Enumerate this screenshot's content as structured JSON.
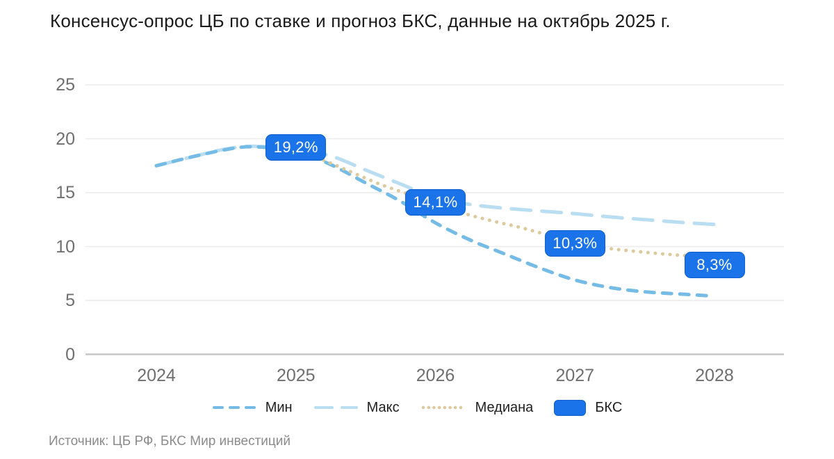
{
  "title": "Консенсус-опрос ЦБ по ставке и прогноз БКС, данные на октябрь 2025 г.",
  "source": "Источник: ЦБ РФ, БКС Мир инвестиций",
  "chart_data": {
    "type": "line",
    "title": "Консенсус-опрос ЦБ по ставке и прогноз БКС, данные на октябрь 2025 г.",
    "x_ticks": [
      "2024",
      "2025",
      "2026",
      "2027",
      "2028"
    ],
    "y_ticks": [
      0,
      5,
      10,
      15,
      20,
      25
    ],
    "xlim": [
      2024,
      2028
    ],
    "ylim": [
      0,
      25
    ],
    "grid": true,
    "legend_position": "bottom",
    "colors": {
      "grid": "#ececec",
      "zero_axis": "#c7c7c7",
      "tick_text": "#6f6f6f",
      "title_text": "#1b1b1b",
      "source_text": "#8b8b8b"
    },
    "series": [
      {
        "id": "max",
        "name": "Макс",
        "color": "#b9ddf1",
        "style": "dash-long",
        "points": [
          [
            2024,
            17.5
          ],
          [
            2024.25,
            18.3
          ],
          [
            2024.5,
            19.05
          ],
          [
            2024.7,
            19.3
          ],
          [
            2025,
            19.0
          ],
          [
            2025.25,
            18.4
          ],
          [
            2025.5,
            17.1
          ],
          [
            2025.75,
            15.8
          ],
          [
            2026,
            14.5
          ],
          [
            2026.25,
            13.9
          ],
          [
            2026.5,
            13.55
          ],
          [
            2026.75,
            13.3
          ],
          [
            2027,
            13.05
          ],
          [
            2027.25,
            12.75
          ],
          [
            2027.5,
            12.5
          ],
          [
            2027.75,
            12.25
          ],
          [
            2028,
            12.05
          ]
        ]
      },
      {
        "id": "min",
        "name": "Мин",
        "color": "#74bce6",
        "style": "dash-short",
        "points": [
          [
            2024,
            17.5
          ],
          [
            2024.25,
            18.3
          ],
          [
            2024.5,
            19.0
          ],
          [
            2024.7,
            19.25
          ],
          [
            2025,
            18.8
          ],
          [
            2025.25,
            17.6
          ],
          [
            2025.5,
            15.9
          ],
          [
            2025.75,
            14.2
          ],
          [
            2026,
            12.2
          ],
          [
            2026.25,
            10.6
          ],
          [
            2026.5,
            9.3
          ],
          [
            2026.75,
            8.0
          ],
          [
            2027,
            6.9
          ],
          [
            2027.25,
            6.2
          ],
          [
            2027.5,
            5.8
          ],
          [
            2027.75,
            5.6
          ],
          [
            2028,
            5.4
          ]
        ]
      },
      {
        "id": "median",
        "name": "Медиана",
        "color": "#ddca9c",
        "style": "dotted",
        "points": [
          [
            2025,
            19.0
          ],
          [
            2025.2,
            18.0
          ],
          [
            2025.4,
            16.9
          ],
          [
            2025.6,
            15.8
          ],
          [
            2025.8,
            14.9
          ],
          [
            2026,
            14.1
          ],
          [
            2026.2,
            13.1
          ],
          [
            2026.4,
            12.4
          ],
          [
            2026.6,
            11.8
          ],
          [
            2026.8,
            11.1
          ],
          [
            2027,
            10.4
          ],
          [
            2027.2,
            9.9
          ],
          [
            2027.4,
            9.6
          ],
          [
            2027.6,
            9.35
          ],
          [
            2027.8,
            9.15
          ],
          [
            2028,
            9.0
          ]
        ]
      }
    ],
    "bks": {
      "name": "БКС",
      "color": "#1a73e8",
      "border_color": "#0e5fce",
      "labels": [
        {
          "text": "19,2%",
          "year": 2025,
          "value": 19.2
        },
        {
          "text": "14,1%",
          "year": 2026,
          "value": 14.1
        },
        {
          "text": "10,3%",
          "year": 2027,
          "value": 10.3
        },
        {
          "text": "8,3%",
          "year": 2028,
          "value": 8.3
        }
      ]
    }
  }
}
